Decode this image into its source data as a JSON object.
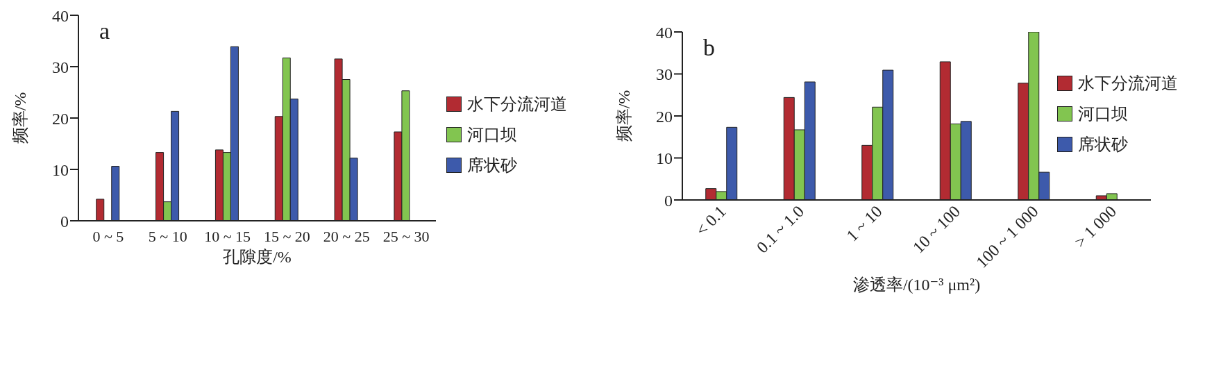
{
  "chart_data": [
    {
      "type": "bar",
      "annotations": [
        "a"
      ],
      "xlabel": "孔隙度/%",
      "ylabel": "频率/%",
      "categories": [
        "0 ~ 5",
        "5 ~ 10",
        "10 ~ 15",
        "15 ~ 20",
        "20 ~ 25",
        "25 ~ 30"
      ],
      "ylim": [
        0,
        40
      ],
      "yticks": [
        0,
        10,
        20,
        30,
        40
      ],
      "grid": false,
      "legend": "right",
      "series": [
        {
          "name": "水下分流河道",
          "color": "#b22b32",
          "values": [
            4.2,
            13.3,
            13.8,
            20.3,
            31.5,
            17.3
          ]
        },
        {
          "name": "河口坝",
          "color": "#82c550",
          "values": [
            0,
            3.7,
            13.3,
            31.7,
            27.5,
            25.3
          ]
        },
        {
          "name": "席状砂",
          "color": "#3d5aab",
          "values": [
            10.6,
            21.3,
            33.9,
            23.7,
            12.2,
            0
          ]
        }
      ]
    },
    {
      "type": "bar",
      "annotations": [
        "b"
      ],
      "xlabel": "渗透率/(10⁻³ μm²)",
      "ylabel": "频率/%",
      "categories": [
        "< 0.1",
        "0.1 ~ 1.0",
        "1 ~ 10",
        "10 ~ 100",
        "100 ~ 1 000",
        "> 1 000"
      ],
      "ylim": [
        0,
        40
      ],
      "yticks": [
        0,
        10,
        20,
        30,
        40
      ],
      "grid": false,
      "legend": "top right",
      "series": [
        {
          "name": "水下分流河道",
          "color": "#b22b32",
          "values": [
            2.7,
            24.4,
            13.0,
            32.9,
            27.8,
            1.0
          ]
        },
        {
          "name": "河口坝",
          "color": "#82c550",
          "values": [
            2.0,
            16.7,
            22.1,
            18.1,
            40,
            1.5
          ]
        },
        {
          "name": "席状砂",
          "color": "#3d5aab",
          "values": [
            17.3,
            28.1,
            30.9,
            18.7,
            6.6,
            0
          ]
        }
      ]
    }
  ]
}
